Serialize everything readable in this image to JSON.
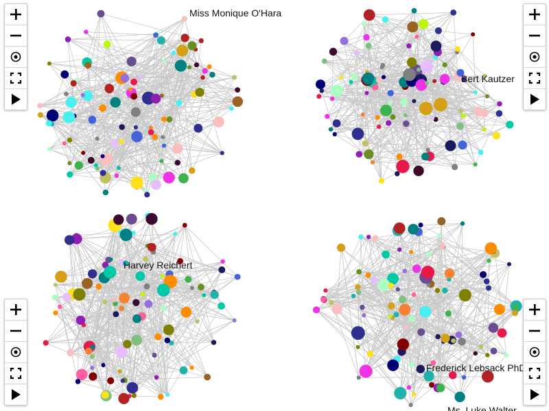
{
  "app": {
    "background": "#ffffff",
    "edge_color": "#c8c8c8"
  },
  "toolbar": {
    "buttons": [
      {
        "name": "zoom-in",
        "icon": "plus-icon"
      },
      {
        "name": "zoom-out",
        "icon": "minus-icon"
      },
      {
        "name": "center",
        "icon": "target-icon"
      },
      {
        "name": "fullscreen",
        "icon": "fullscreen-icon"
      },
      {
        "name": "play",
        "icon": "play-icon"
      }
    ]
  },
  "graphs": [
    {
      "id": "top-left",
      "label": "Miss Monique O'Hara"
    },
    {
      "id": "top-right",
      "label": "Bert Kautzer"
    },
    {
      "id": "bottom-left",
      "label": "Harvey Reichert"
    },
    {
      "id": "bottom-right",
      "label": "Frederick Lebsack PhD",
      "label_2": "Ms. Luke Walter"
    }
  ],
  "palette": [
    "#e6194b",
    "#3cb44b",
    "#ffe119",
    "#4363d8",
    "#f58231",
    "#911eb4",
    "#46f0f0",
    "#f032e6",
    "#bcf60c",
    "#fabebe",
    "#008080",
    "#e6beff",
    "#9a6324",
    "#800000",
    "#aaffc3",
    "#808000",
    "#000075",
    "#808080",
    "#1a1a5e",
    "#3d0a2e",
    "#c0c066",
    "#6a4c93",
    "#ff5fa2",
    "#00c9a7",
    "#2f2f8f",
    "#d4a017",
    "#7fbf7f",
    "#6b8e23",
    "#b22222",
    "#9370db",
    "#20b2aa",
    "#ff8c00"
  ]
}
